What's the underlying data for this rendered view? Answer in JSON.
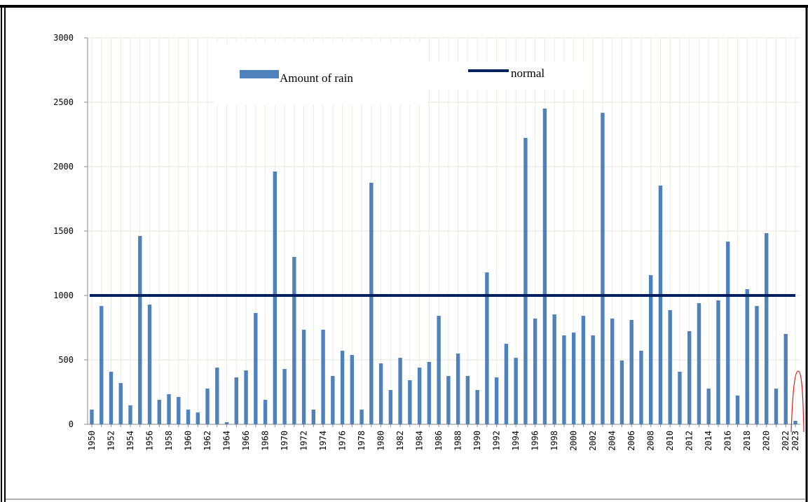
{
  "chart_data": {
    "type": "bar",
    "categories": [
      "1950",
      null,
      "1952",
      null,
      "1954",
      null,
      "1956",
      null,
      "1958",
      null,
      "1960",
      null,
      "1962",
      null,
      "1964",
      null,
      "1966",
      null,
      "1968",
      null,
      "1970",
      null,
      "1972",
      null,
      "1974",
      null,
      "1976",
      null,
      "1978",
      null,
      "1980",
      null,
      "1982",
      null,
      "1984",
      null,
      "1986",
      null,
      "1988",
      null,
      "1990",
      null,
      "1992",
      null,
      "1994",
      null,
      "1996",
      null,
      "1998",
      null,
      "2000",
      null,
      "2002",
      null,
      "2004",
      null,
      "2006",
      null,
      "2008",
      null,
      "2010",
      null,
      "2012",
      null,
      "2014",
      null,
      "2016",
      null,
      "2018",
      null,
      "2020",
      null,
      "2022",
      "2023"
    ],
    "series": [
      {
        "name": "Amount of rain",
        "color": "#4f81bd",
        "values": [
          114,
          918,
          408,
          320,
          147,
          1462,
          929,
          190,
          234,
          212,
          114,
          92,
          277,
          440,
          16,
          364,
          418,
          864,
          190,
          1962,
          429,
          1299,
          734,
          114,
          734,
          375,
          571,
          538,
          114,
          1875,
          473,
          266,
          516,
          342,
          440,
          484,
          842,
          375,
          549,
          375,
          266,
          1179,
          364,
          625,
          516,
          2223,
          821,
          2451,
          853,
          690,
          712,
          842,
          690,
          2418,
          821,
          495,
          810,
          571,
          1158,
          1853,
          886,
          408,
          723,
          940,
          277,
          962,
          1418,
          223,
          1049,
          918,
          1484,
          277,
          701,
          27
        ]
      },
      {
        "name": "normal",
        "color": "#002060",
        "type": "line",
        "values": [
          1000,
          1000,
          1000,
          1000,
          1000,
          1000,
          1000,
          1000,
          1000,
          1000,
          1000,
          1000,
          1000,
          1000,
          1000,
          1000,
          1000,
          1000,
          1000,
          1000,
          1000,
          1000,
          1000,
          1000,
          1000,
          1000,
          1000,
          1000,
          1000,
          1000,
          1000,
          1000,
          1000,
          1000,
          1000,
          1000,
          1000,
          1000,
          1000,
          1000,
          1000,
          1000,
          1000,
          1000,
          1000,
          1000,
          1000,
          1000,
          1000,
          1000,
          1000,
          1000,
          1000,
          1000,
          1000,
          1000,
          1000,
          1000,
          1000,
          1000,
          1000,
          1000,
          1000,
          1000,
          1000,
          1000,
          1000,
          1000,
          1000,
          1000,
          1000,
          1000,
          1000,
          1000
        ]
      }
    ],
    "ylim": [
      0,
      3000
    ],
    "yticks": [
      0,
      500,
      1000,
      1500,
      2000,
      2500,
      3000
    ],
    "grid": true
  }
}
